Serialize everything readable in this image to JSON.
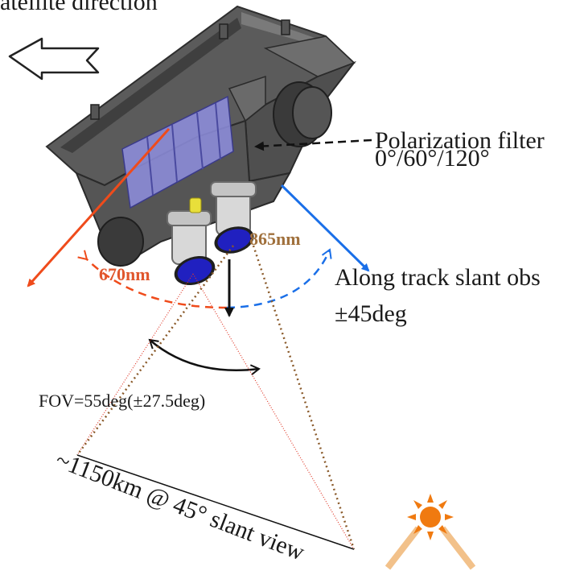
{
  "labels": {
    "direction": "atellite direction",
    "polarization_line1": "Polarization filter",
    "polarization_line2": "0°/60°/120°",
    "band_670": "670nm",
    "band_865": "865nm",
    "along_track_line1": "Along track slant obs",
    "along_track_line2": "±45deg",
    "fov": "FOV=55deg(±27.5deg)",
    "footprint": "~1150km @ 45° slant view"
  },
  "colors": {
    "red_arrow": "#ef4b1b",
    "blue_arrow": "#1a6fe8",
    "lens_blue": "#1f1fbf",
    "filter_panel": "#8f8fe0",
    "body_dark": "#4a4a4a",
    "sun": "#f07a10",
    "sun_rays": "#f2c18a"
  },
  "icons": [
    "direction-arrow-icon",
    "sun-icon"
  ]
}
